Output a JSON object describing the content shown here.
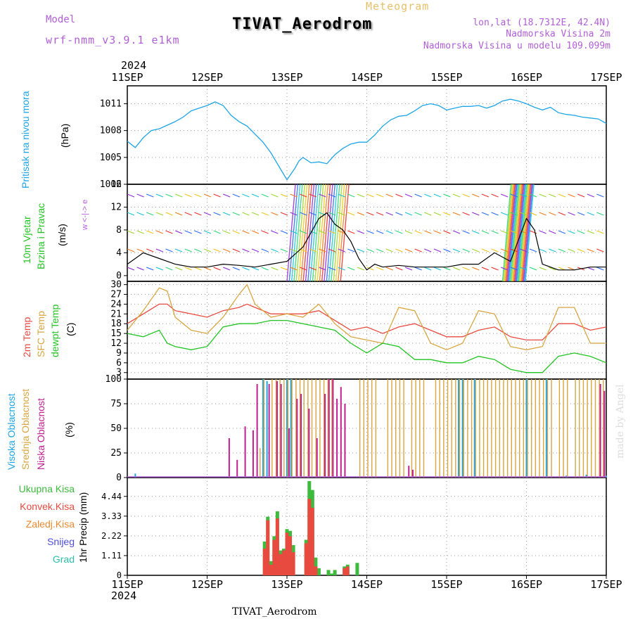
{
  "header": {
    "model_label": "Model",
    "model_name": "wrf-nmm_v3.9.1 e1km",
    "meteogram_label": "Meteogram",
    "title": "TIVAT_Aerodrom",
    "coords": "lon,lat (18.7312E, 42.4N)",
    "altitude": "Nadmorska Visina 2m",
    "model_altitude": "Nadmorska Visina u modelu 109.099m",
    "year_top": "2024",
    "year_bottom": "2024",
    "footer_station": "TIVAT_Aerodrom",
    "watermark": "made by Angel"
  },
  "colors": {
    "pressure": "#1ea5e6",
    "temp2m": "#e84a3f",
    "sfc_temp": "#d9a541",
    "dewpoint": "#22c422",
    "high_cloud": "#1ea5e6",
    "mid_cloud": "#d9a541",
    "low_cloud": "#c01f8f",
    "purple": "#b15fd6",
    "total_precip": "#3dbb3d",
    "conv_precip": "#e84a3f",
    "frozen_precip": "#e8892f",
    "snow": "#4d4de0",
    "graupel": "#2bbfa8"
  },
  "chart_data": [
    {
      "type": "line",
      "title": "",
      "ylabel_series": "Pritisak na nivou mora",
      "yunit": "(hPa)",
      "xlabel": "",
      "x_ticks": [
        "11SEP",
        "12SEP",
        "13SEP",
        "14SEP",
        "15SEP",
        "16SEP",
        "17SEP"
      ],
      "ylim": [
        1002,
        1013
      ],
      "yticks": [
        1002,
        1005,
        1008,
        1011
      ],
      "grid": true,
      "series": [
        {
          "name": "Pritisak na nivou mora",
          "x": [
            0,
            0.1,
            0.2,
            0.3,
            0.4,
            0.5,
            0.6,
            0.7,
            0.8,
            0.9,
            1.0,
            1.1,
            1.2,
            1.3,
            1.4,
            1.5,
            1.6,
            1.7,
            1.8,
            1.9,
            2.0,
            2.1,
            2.15,
            2.2,
            2.3,
            2.4,
            2.5,
            2.6,
            2.7,
            2.8,
            2.9,
            3.0,
            3.1,
            3.2,
            3.3,
            3.4,
            3.5,
            3.6,
            3.7,
            3.8,
            3.9,
            4.0,
            4.1,
            4.2,
            4.3,
            4.4,
            4.5,
            4.6,
            4.7,
            4.8,
            4.9,
            5.0,
            5.1,
            5.2,
            5.3,
            5.4,
            5.5,
            5.6,
            5.7,
            5.8,
            5.9,
            6.0
          ],
          "values": [
            1006.8,
            1006.1,
            1007.2,
            1008.0,
            1008.2,
            1008.6,
            1009.0,
            1009.5,
            1010.2,
            1010.5,
            1010.8,
            1011.2,
            1010.8,
            1009.7,
            1009.0,
            1008.5,
            1007.6,
            1006.7,
            1005.5,
            1004.0,
            1002.5,
            1003.8,
            1004.6,
            1005.0,
            1004.4,
            1004.5,
            1004.3,
            1005.3,
            1006.0,
            1006.5,
            1006.7,
            1006.7,
            1007.5,
            1008.5,
            1009.2,
            1009.6,
            1009.7,
            1010.2,
            1010.8,
            1011.0,
            1010.8,
            1010.3,
            1010.5,
            1010.7,
            1010.7,
            1010.8,
            1010.5,
            1010.8,
            1011.3,
            1011.5,
            1011.3,
            1011.0,
            1010.6,
            1010.3,
            1010.6,
            1010.0,
            1009.8,
            1009.7,
            1009.5,
            1009.4,
            1009.3,
            1008.8
          ]
        }
      ]
    },
    {
      "type": "line",
      "title": "",
      "ylabel_series": [
        "10m Vjetar",
        "Brzina i Pravac"
      ],
      "yunit": "(m/s)",
      "compass": "w <-|-> e",
      "ylim": [
        -1,
        16
      ],
      "yticks": [
        0,
        4,
        8,
        12,
        16
      ],
      "grid": true,
      "series": [
        {
          "name": "Brzina",
          "x": [
            0,
            0.2,
            0.4,
            0.5,
            0.6,
            0.8,
            1.0,
            1.2,
            1.4,
            1.6,
            1.8,
            2.0,
            2.2,
            2.4,
            2.5,
            2.6,
            2.7,
            2.8,
            2.9,
            3.0,
            3.1,
            3.2,
            3.4,
            3.6,
            3.8,
            4.0,
            4.2,
            4.4,
            4.6,
            4.8,
            5.0,
            5.1,
            5.2,
            5.4,
            5.6,
            5.8,
            6.0
          ],
          "values": [
            2,
            4,
            3,
            2.5,
            2,
            1.5,
            1.5,
            2,
            1.8,
            1.5,
            2,
            2.5,
            5,
            10,
            11,
            9,
            8,
            6,
            3,
            1,
            2,
            1.5,
            1.8,
            1.5,
            1.5,
            1.5,
            2,
            2,
            4,
            2.5,
            10,
            8,
            2,
            1,
            1,
            1.5,
            1.5
          ]
        }
      ],
      "shaded_bands": [
        [
          2.0,
          2.7
        ],
        [
          4.7,
          5.0
        ]
      ]
    },
    {
      "type": "line",
      "title": "",
      "ylabel_series": [
        "2m Temp",
        "SFC Temp",
        "dewpt Temp"
      ],
      "yunit": "(C)",
      "ylim": [
        1,
        31
      ],
      "yticks": [
        3,
        6,
        9,
        12,
        15,
        18,
        21,
        24,
        27,
        30
      ],
      "grid": true,
      "series": [
        {
          "name": "2m Temp",
          "x": [
            0,
            0.2,
            0.4,
            0.5,
            0.6,
            0.8,
            1.0,
            1.2,
            1.4,
            1.5,
            1.6,
            1.8,
            2.0,
            2.2,
            2.4,
            2.6,
            2.8,
            3.0,
            3.2,
            3.4,
            3.6,
            3.8,
            4.0,
            4.2,
            4.4,
            4.6,
            4.8,
            5.0,
            5.2,
            5.4,
            5.6,
            5.8,
            6.0
          ],
          "values": [
            18,
            21,
            24,
            24,
            22,
            21,
            20,
            22,
            23,
            24,
            23,
            21,
            21,
            21,
            22,
            19,
            16,
            17,
            15,
            17,
            18,
            16,
            14,
            14,
            16,
            17,
            14,
            13,
            13,
            18,
            18,
            16,
            17
          ]
        },
        {
          "name": "SFC Temp",
          "x": [
            0,
            0.2,
            0.4,
            0.5,
            0.6,
            0.8,
            1.0,
            1.2,
            1.4,
            1.5,
            1.6,
            1.8,
            2.0,
            2.2,
            2.4,
            2.6,
            2.8,
            3.0,
            3.2,
            3.4,
            3.6,
            3.8,
            4.0,
            4.2,
            4.4,
            4.6,
            4.8,
            5.0,
            5.2,
            5.4,
            5.6,
            5.8,
            6.0
          ],
          "values": [
            16,
            22,
            29,
            28,
            20,
            16,
            15,
            20,
            27,
            30,
            24,
            20,
            21,
            20,
            24,
            18,
            14,
            13,
            12,
            23,
            22,
            12,
            10,
            12,
            22,
            21,
            11,
            10,
            11,
            23,
            23,
            12,
            12
          ]
        },
        {
          "name": "dewpt Temp",
          "x": [
            0,
            0.2,
            0.4,
            0.5,
            0.6,
            0.8,
            1.0,
            1.2,
            1.4,
            1.6,
            1.8,
            2.0,
            2.2,
            2.4,
            2.6,
            2.8,
            3.0,
            3.2,
            3.4,
            3.6,
            3.8,
            4.0,
            4.2,
            4.4,
            4.6,
            4.8,
            5.0,
            5.2,
            5.4,
            5.6,
            5.8,
            6.0
          ],
          "values": [
            15,
            14,
            16,
            12,
            11,
            10,
            11,
            17,
            18,
            18,
            19,
            19,
            18,
            17,
            16,
            12,
            9,
            12,
            11,
            7,
            7,
            6,
            6,
            8,
            7,
            4,
            3,
            3,
            8,
            9,
            8,
            6
          ]
        }
      ]
    },
    {
      "type": "bar",
      "title": "",
      "ylabel_series": [
        "Visoka Oblacnost",
        "Srednja Oblacnost",
        "Niska Oblacnost"
      ],
      "yunit": "(%)",
      "ylim": [
        0,
        100
      ],
      "yticks": [
        0,
        25,
        50,
        75,
        100
      ],
      "grid": true,
      "series": [
        {
          "name": "Visoka Oblacnost",
          "x": [
            0.1,
            1.7,
            1.75,
            2.0,
            2.05,
            4.15,
            4.2,
            4.35,
            5.0,
            5.25,
            5.5,
            5.75,
            6.0
          ],
          "values": [
            4,
            100,
            98,
            100,
            100,
            100,
            100,
            100,
            100,
            100,
            2,
            3,
            2
          ]
        },
        {
          "name": "Srednja Oblacnost",
          "x": [
            1.65,
            1.7,
            1.8,
            1.85,
            1.9,
            1.95,
            2.0,
            2.05,
            2.1,
            2.15,
            2.2,
            2.25,
            2.3,
            2.35,
            2.4,
            2.45,
            2.5,
            2.55,
            2.9,
            2.95,
            3.0,
            3.05,
            3.1,
            3.25,
            3.3,
            3.35,
            3.4,
            3.45,
            3.55,
            3.6,
            3.65,
            3.7,
            3.85,
            3.9,
            3.95,
            4.0,
            4.05,
            4.1,
            4.15,
            4.2,
            4.25,
            4.3,
            4.35,
            4.4,
            4.45,
            4.5,
            4.55,
            4.6,
            4.65,
            4.7,
            4.75,
            4.8,
            4.85,
            4.9,
            4.95,
            5.0,
            5.05,
            5.1,
            5.15,
            5.2,
            5.25,
            5.3,
            5.4,
            5.45,
            5.5,
            5.6,
            5.65,
            5.7,
            5.75,
            5.8,
            5.85,
            5.9,
            5.95
          ],
          "values": [
            30,
            100,
            100,
            100,
            100,
            100,
            100,
            100,
            100,
            100,
            100,
            100,
            100,
            100,
            100,
            100,
            100,
            100,
            100,
            100,
            100,
            100,
            100,
            100,
            100,
            100,
            100,
            100,
            100,
            100,
            100,
            100,
            100,
            100,
            100,
            100,
            100,
            100,
            100,
            100,
            100,
            100,
            100,
            100,
            100,
            100,
            100,
            100,
            100,
            100,
            100,
            100,
            100,
            100,
            100,
            100,
            100,
            100,
            100,
            100,
            100,
            100,
            100,
            100,
            100,
            100,
            100,
            100,
            100,
            100,
            100,
            100,
            100
          ]
        },
        {
          "name": "Niska Oblacnost",
          "x": [
            1.25,
            1.35,
            1.45,
            1.55,
            1.6,
            1.75,
            1.85,
            1.9,
            2.0,
            2.1,
            2.15,
            2.25,
            2.35,
            2.45,
            2.5,
            2.55,
            2.6,
            2.65,
            2.7,
            3.5,
            3.55,
            5.9,
            5.95
          ],
          "values": [
            40,
            18,
            52,
            48,
            95,
            95,
            98,
            95,
            50,
            80,
            85,
            70,
            40,
            85,
            100,
            100,
            80,
            92,
            75,
            12,
            8,
            95,
            88
          ]
        }
      ]
    },
    {
      "type": "bar",
      "title": "",
      "ylabel_series": [
        "Ukupna Kisa",
        "Konvek.Kisa",
        "Zaledj.Kisa",
        "Snijeg",
        "Grad"
      ],
      "ylabel": "1hr Precip (mm)",
      "ylim": [
        0,
        5.5
      ],
      "yticks": [
        0,
        1.11,
        2.22,
        3.33,
        4.44
      ],
      "grid": true,
      "x_ticks": [
        "11SEP",
        "12SEP",
        "13SEP",
        "14SEP",
        "15SEP",
        "16SEP",
        "17SEP"
      ],
      "series": [
        {
          "name": "Ukupna Kisa",
          "x": [
            1.72,
            1.76,
            1.8,
            1.84,
            1.88,
            1.92,
            1.96,
            2.0,
            2.04,
            2.08,
            2.24,
            2.28,
            2.32,
            2.36,
            2.4,
            2.52,
            2.56,
            2.6,
            2.72,
            2.76,
            2.88
          ],
          "values": [
            1.9,
            3.3,
            0.8,
            2.2,
            3.6,
            1.4,
            1.5,
            2.6,
            2.5,
            1.7,
            2.0,
            5.3,
            4.8,
            1.0,
            0.4,
            0.3,
            0.1,
            0.3,
            0.5,
            0.6,
            0.7
          ]
        },
        {
          "name": "Konvek.Kisa",
          "x": [
            1.72,
            1.76,
            1.8,
            1.84,
            1.88,
            1.92,
            1.96,
            2.0,
            2.04,
            2.08,
            2.24,
            2.28,
            2.32,
            2.36,
            2.72,
            2.76
          ],
          "values": [
            1.5,
            3.1,
            0.6,
            2.0,
            3.2,
            1.2,
            1.4,
            2.4,
            2.2,
            1.3,
            1.8,
            4.3,
            3.8,
            0.5,
            0.4,
            0.5
          ]
        }
      ]
    }
  ]
}
